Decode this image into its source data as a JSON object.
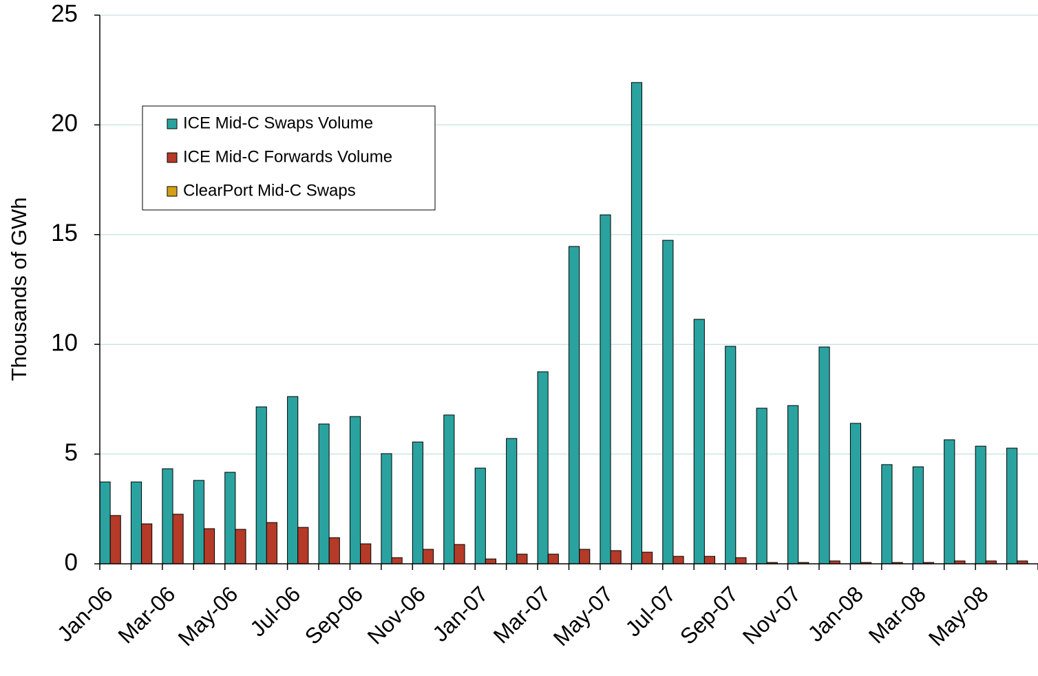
{
  "chart_data": {
    "type": "bar",
    "y_label": "Thousands of GWh",
    "categories": [
      "Jan-06",
      null,
      "Mar-06",
      null,
      "May-06",
      null,
      "Jul-06",
      null,
      "Sep-06",
      null,
      "Nov-06",
      null,
      "Jan-07",
      null,
      "Mar-07",
      null,
      "May-07",
      null,
      "Jul-07",
      null,
      "Sep-07",
      null,
      "Nov-07",
      null,
      "Jan-08",
      null,
      "Mar-08",
      null,
      "May-08",
      null
    ],
    "series": [
      {
        "name": "ICE Mid-C Swaps Volume",
        "color": "#2aa3a0",
        "values": [
          3.73,
          3.73,
          4.33,
          3.8,
          4.17,
          7.15,
          7.62,
          6.37,
          6.71,
          5.02,
          5.55,
          6.78,
          4.36,
          5.71,
          8.75,
          14.46,
          15.9,
          21.93,
          14.74,
          11.14,
          9.91,
          7.09,
          7.21,
          9.88,
          6.4,
          4.52,
          4.42,
          5.65,
          5.36,
          5.27
        ]
      },
      {
        "name": "ICE Mid-C Forwards Volume",
        "color": "#b53a28",
        "values": [
          2.2,
          1.82,
          2.26,
          1.6,
          1.57,
          1.88,
          1.66,
          1.19,
          0.91,
          0.28,
          0.66,
          0.88,
          0.22,
          0.44,
          0.44,
          0.66,
          0.6,
          0.53,
          0.34,
          0.34,
          0.28,
          0.06,
          0.06,
          0.13,
          0.06,
          0.06,
          0.06,
          0.13,
          0.13,
          0.13
        ]
      },
      {
        "name": "ClearPort Mid-C Swaps",
        "color": "#d4a017",
        "values": [
          0,
          0,
          0,
          0,
          0,
          0,
          0,
          0,
          0,
          0,
          0,
          0,
          0,
          0,
          0,
          0,
          0,
          0,
          0,
          0,
          0,
          0,
          0,
          0,
          0,
          0,
          0,
          0,
          0,
          0
        ]
      }
    ],
    "ylim": [
      0,
      25
    ],
    "yticks": [
      0,
      5,
      10,
      15,
      20,
      25
    ],
    "grid": true,
    "legend": "upper left"
  }
}
